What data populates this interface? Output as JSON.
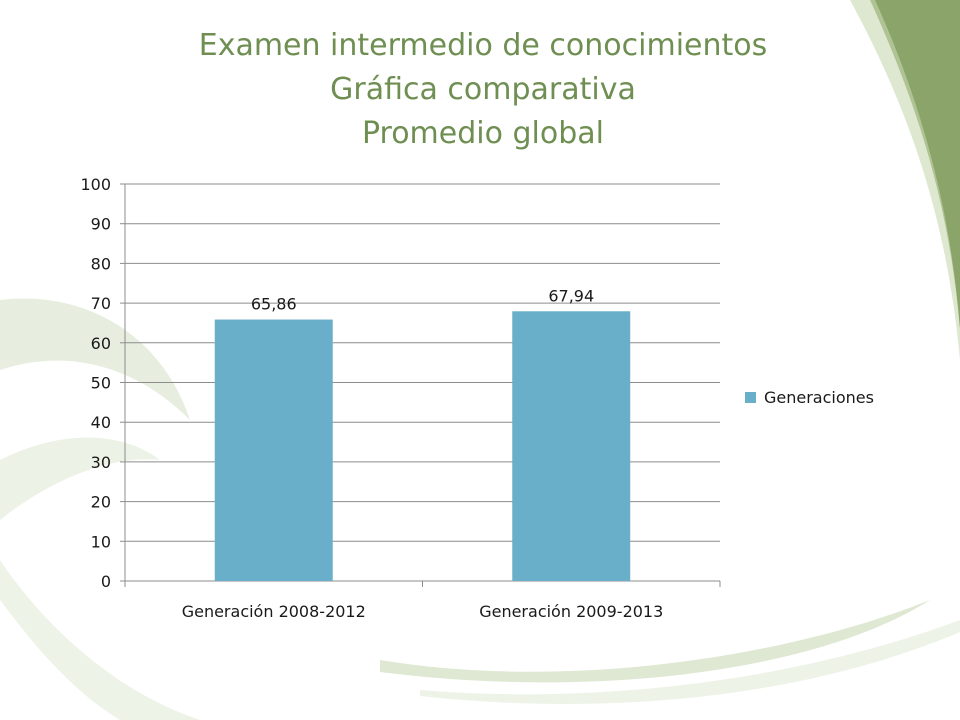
{
  "title": {
    "line1": "Examen intermedio de conocimientos",
    "line2": "Gráfica comparativa",
    "line3": "Promedio global"
  },
  "colors": {
    "title": "#6f8f52",
    "bar": "#6aafc9",
    "swoosh_dark": "#8aa46a",
    "swoosh_light": "#e4ecd9"
  },
  "chart_data": {
    "type": "bar",
    "categories": [
      "Generación 2008-2012",
      "Generación 2009-2013"
    ],
    "series": [
      {
        "name": "Generaciones",
        "values": [
          65.86,
          67.94
        ],
        "labels": [
          "65,86",
          "67,94"
        ]
      }
    ],
    "ylim": [
      0,
      100
    ],
    "yticks": [
      0,
      10,
      20,
      30,
      40,
      50,
      60,
      70,
      80,
      90,
      100
    ],
    "grid": true,
    "legend": "right"
  }
}
